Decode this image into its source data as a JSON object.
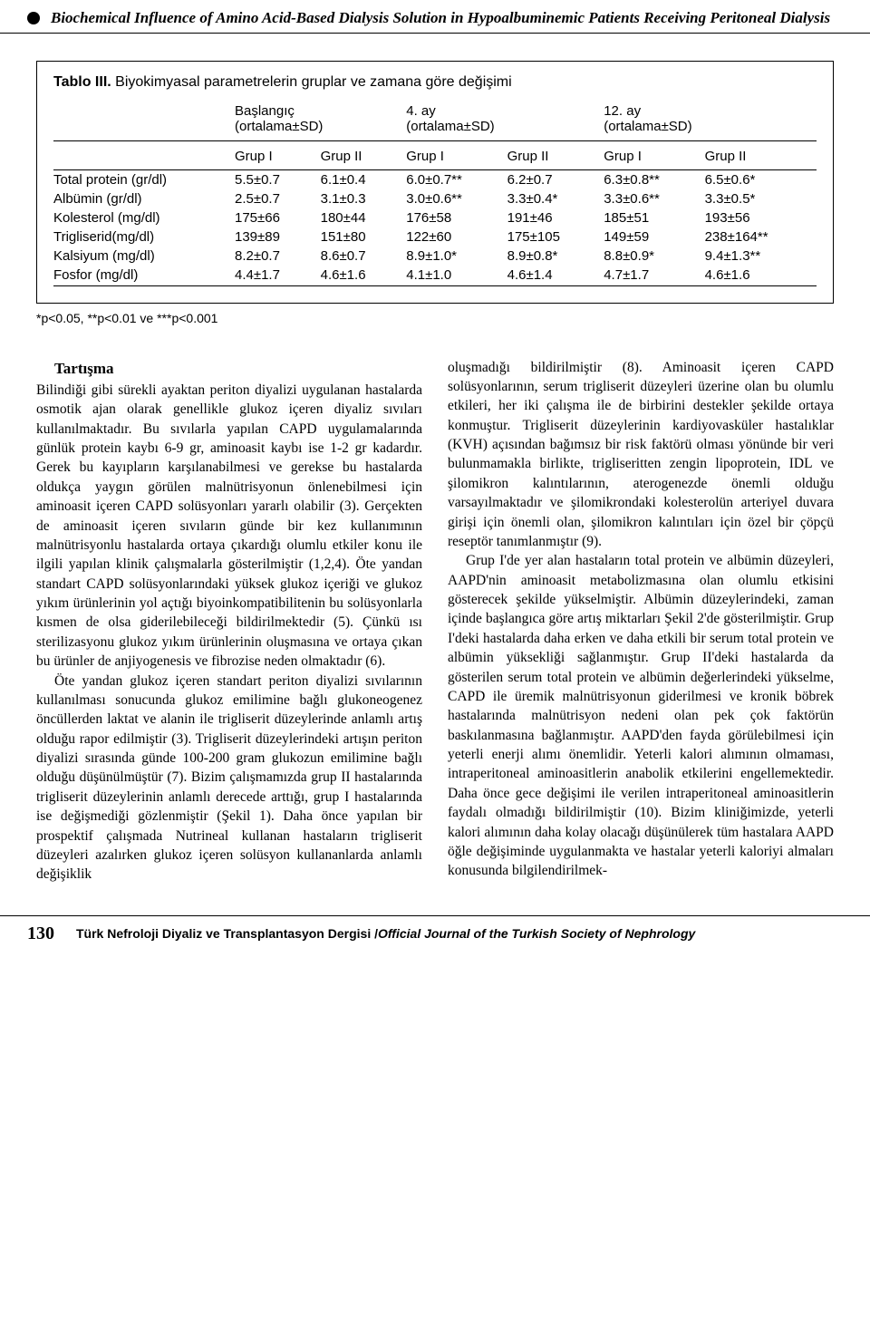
{
  "header": {
    "title": "Biochemical Influence of Amino Acid-Based Dialysis Solution in Hypoalbuminemic Patients Receiving Peritoneal Dialysis"
  },
  "table": {
    "caption_label": "Tablo III.",
    "caption_text": "Biyokimyasal parametrelerin gruplar ve zamana göre değişimi",
    "periods": [
      {
        "label": "Başlangıç",
        "sub": "(ortalama±SD)"
      },
      {
        "label": "4. ay",
        "sub": "(ortalama±SD)"
      },
      {
        "label": "12. ay",
        "sub": "(ortalama±SD)"
      }
    ],
    "group_labels": [
      "Grup I",
      "Grup II",
      "Grup I",
      "Grup II",
      "Grup I",
      "Grup II"
    ],
    "rows": [
      {
        "name": "Total protein (gr/dl)",
        "cells": [
          "5.5±0.7",
          "6.1±0.4",
          "6.0±0.7**",
          "6.2±0.7",
          "6.3±0.8**",
          "6.5±0.6*"
        ]
      },
      {
        "name": "Albümin (gr/dl)",
        "cells": [
          "2.5±0.7",
          "3.1±0.3",
          "3.0±0.6**",
          "3.3±0.4*",
          "3.3±0.6**",
          "3.3±0.5*"
        ]
      },
      {
        "name": "Kolesterol (mg/dl)",
        "cells": [
          "175±66",
          "180±44",
          "176±58",
          "191±46",
          "185±51",
          "193±56"
        ]
      },
      {
        "name": "Trigliserid(mg/dl)",
        "cells": [
          "139±89",
          "151±80",
          "122±60",
          "175±105",
          "149±59",
          "238±164**"
        ]
      },
      {
        "name": "Kalsiyum (mg/dl)",
        "cells": [
          "8.2±0.7",
          "8.6±0.7",
          "8.9±1.0*",
          "8.9±0.8*",
          "8.8±0.9*",
          "9.4±1.3**"
        ]
      },
      {
        "name": "Fosfor (mg/dl)",
        "cells": [
          "4.4±1.7",
          "4.6±1.6",
          "4.1±1.0",
          "4.6±1.4",
          "4.7±1.7",
          "4.6±1.6"
        ]
      }
    ],
    "footnote": "*p<0.05, **p<0.01 ve ***p<0.001"
  },
  "body": {
    "section_head": "Tartışma",
    "left": {
      "p1": "Bilindiği gibi sürekli ayaktan periton diyalizi uygulanan hastalarda osmotik ajan olarak genellikle glukoz içeren diyaliz sıvıları kullanılmaktadır. Bu sıvılarla yapılan CAPD uygulamalarında günlük protein kaybı 6-9 gr, aminoasit kaybı ise 1-2 gr kadardır. Gerek bu kayıpların karşılanabilmesi ve gerekse bu hastalarda oldukça yaygın görülen malnütrisyonun önlenebilmesi için aminoasit içeren CAPD solüsyonları yararlı olabilir (3). Gerçekten de aminoasit içeren sıvıların günde bir kez kullanımının malnütrisyonlu hastalarda ortaya çıkardığı olumlu etkiler konu ile ilgili yapılan klinik çalışmalarla gösterilmiştir (1,2,4). Öte yandan standart CAPD solüsyonlarındaki yüksek glukoz içeriği ve glukoz yıkım ürünlerinin yol açtığı biyoinkompatibilitenin bu solüsyonlarla kısmen de olsa giderilebileceği bildirilmektedir (5). Çünkü ısı sterilizasyonu glukoz yıkım ürünlerinin oluşmasına ve ortaya çıkan bu ürünler de anjiyogenesis ve fibrozise neden olmaktadır (6).",
      "p2": "Öte yandan glukoz içeren standart periton diyalizi sıvılarının kullanılması sonucunda glukoz emilimine bağlı glukoneogenez öncüllerden laktat ve alanin ile trigliserit düzeylerinde anlamlı artış olduğu rapor edilmiştir (3). Trigliserit düzeylerindeki artışın periton diyalizi sırasında günde 100-200 gram glukozun emilimine bağlı olduğu düşünülmüştür (7). Bizim çalışmamızda grup II hastalarında trigliserit düzeylerinin anlamlı derecede arttığı, grup I hastalarında ise değişmediği gözlenmiştir (Şekil 1). Daha önce yapılan bir prospektif çalışmada Nutrineal kullanan hastaların trigliserit düzeyleri azalırken glukoz içeren solüsyon kullananlarda anlamlı değişiklik"
    },
    "right": {
      "p1": "oluşmadığı bildirilmiştir (8). Aminoasit içeren CAPD solüsyonlarının, serum trigliserit düzeyleri üzerine olan bu olumlu etkileri, her iki çalışma ile de birbirini destekler şekilde ortaya konmuştur. Trigliserit düzeylerinin kardiyovasküler hastalıklar (KVH) açısından bağımsız bir risk faktörü olması yönünde bir veri bulunmamakla birlikte, trigliseritten zengin lipoprotein, IDL ve şilomikron kalıntılarının, aterogenezde önemli olduğu varsayılmaktadır ve şilomikrondaki kolesterolün arteriyel duvara girişi için önemli olan, şilomikron kalıntıları için özel bir çöpçü reseptör tanımlanmıştır (9).",
      "p2": "Grup I'de yer alan hastaların total protein ve albümin düzeyleri, AAPD'nin aminoasit metabolizmasına olan olumlu etkisini gösterecek şekilde yükselmiştir. Albümin düzeylerindeki, zaman içinde başlangıca göre artış miktarları Şekil 2'de gösterilmiştir. Grup I'deki hastalarda daha erken ve daha etkili bir serum total protein ve albümin yüksekliği sağlanmıştır. Grup II'deki hastalarda da gösterilen serum total protein ve albümin değerlerindeki yükselme, CAPD ile üremik malnütrisyonun giderilmesi ve kronik böbrek hastalarında malnütrisyon nedeni olan pek çok faktörün baskılanmasına bağlanmıştır. AAPD'den fayda görülebilmesi için yeterli enerji alımı önemlidir. Yeterli kalori alımının olmaması, intraperitoneal aminoasitlerin anabolik etkilerini engellemektedir. Daha önce gece değişimi ile verilen intraperitoneal aminoasitlerin faydalı olmadığı bildirilmiştir (10). Bizim kliniğimizde, yeterli kalori alımının daha kolay olacağı düşünülerek tüm hastalara AAPD öğle değişiminde uygulanmakta ve hastalar yeterli kaloriyi almaları konusunda bilgilendirilmek-"
    }
  },
  "footer": {
    "page": "130",
    "journal_tr": "Türk Nefroloji Diyaliz ve Transplantasyon Dergisi /",
    "journal_en": "Official Journal of the Turkish Society of Nephrology"
  }
}
